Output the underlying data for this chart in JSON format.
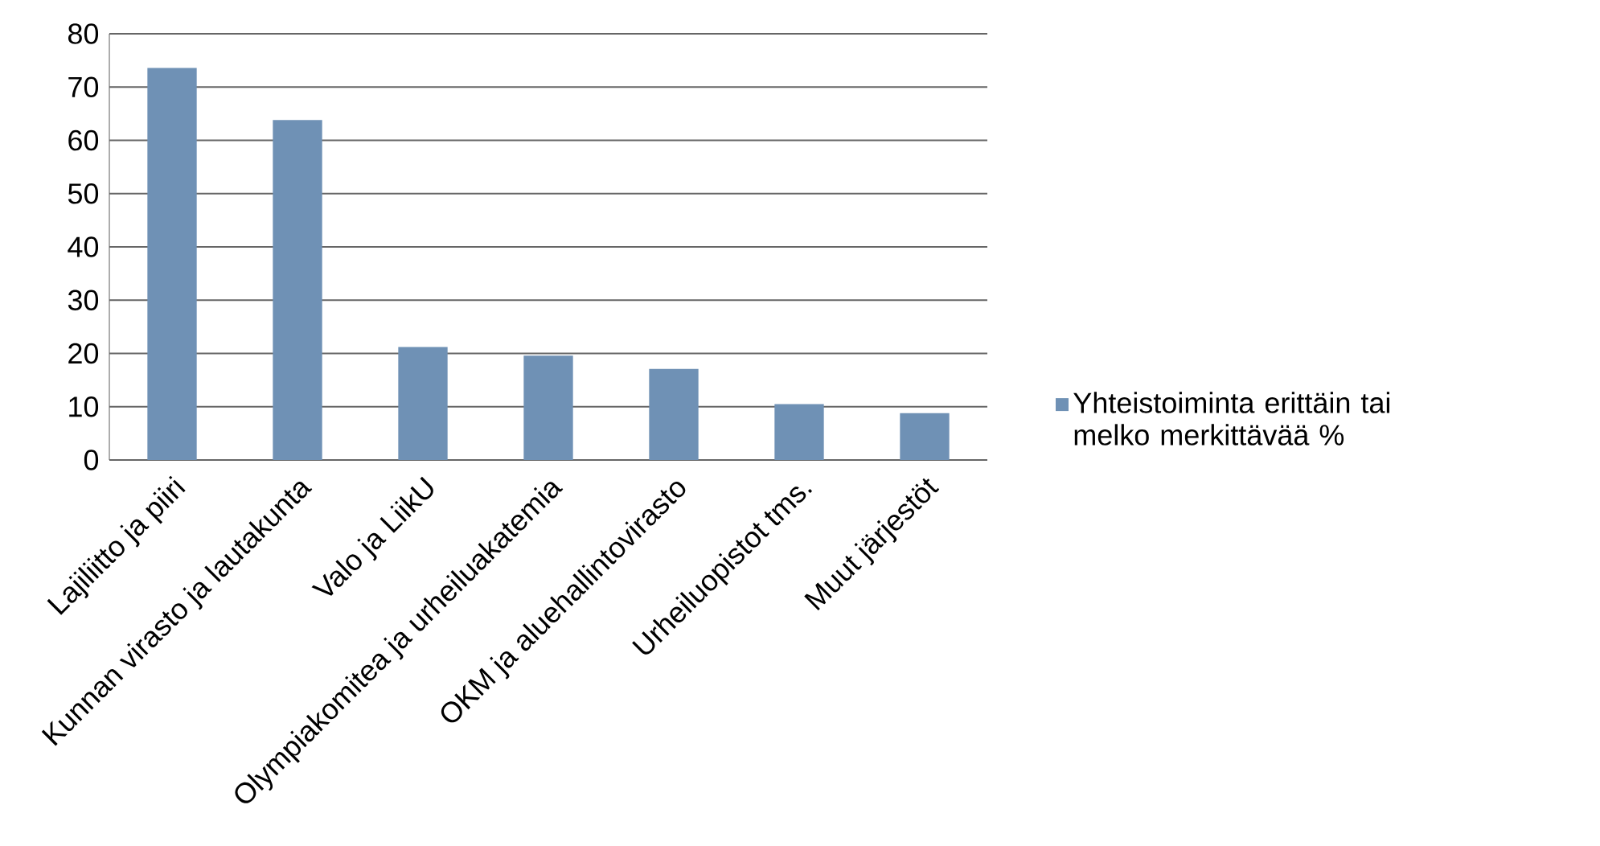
{
  "chart_data": {
    "type": "bar",
    "categories": [
      "Lajiliitto ja piiri",
      "Kunnan virasto ja lautakunta",
      "Valo ja LiikU",
      "Olympiakomitea ja urheiluakatemia",
      "OKM ja aluehallintovirasto",
      "Urheiluopistot tms.",
      "Muut järjestöt"
    ],
    "series": [
      {
        "name": "Yhteistoiminta erittäin tai melko merkittävää %",
        "color": "#6f91b5",
        "values": [
          73.6,
          63.8,
          21.2,
          19.6,
          17.1,
          10.5,
          8.8
        ]
      }
    ],
    "ylim": [
      0,
      80
    ],
    "yticks": [
      0,
      10,
      20,
      30,
      40,
      50,
      60,
      70,
      80
    ],
    "grid": "y",
    "legend": "right"
  }
}
